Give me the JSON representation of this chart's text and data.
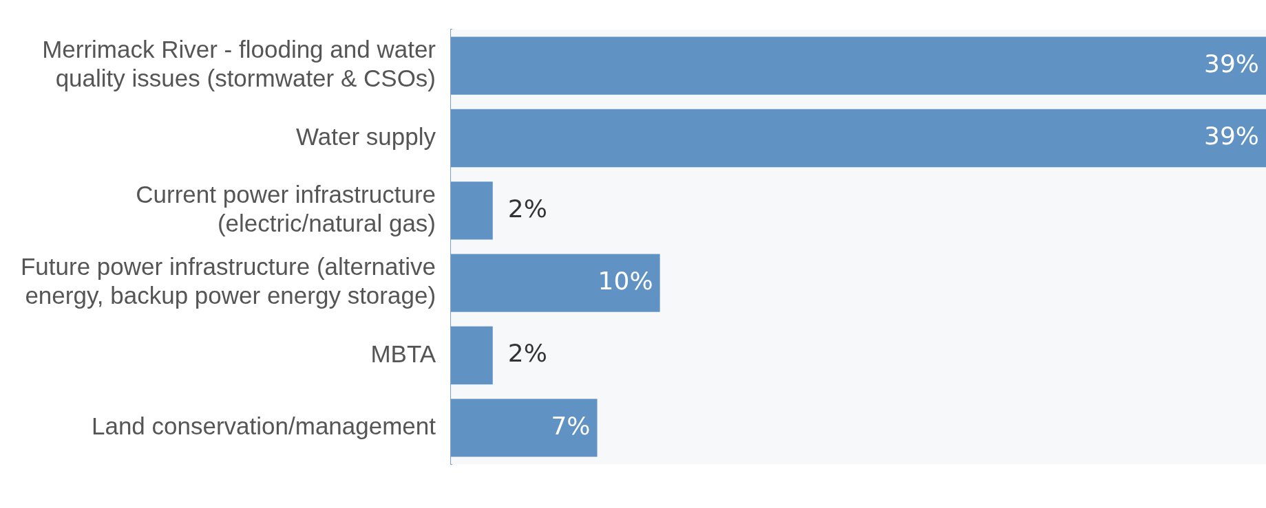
{
  "chart_data": {
    "type": "bar",
    "orientation": "horizontal",
    "tick_labels": "y",
    "categories": [
      "Merrimack River - flooding and water quality issues (stormwater & CSOs)",
      "Water supply",
      "Current power infrastructure (electric/natural gas)",
      "Future power infrastructure (alternative energy, backup power energy storage)",
      "MBTA",
      "Land conservation/management"
    ],
    "values": [
      39,
      39,
      2,
      10,
      2,
      7
    ],
    "value_labels": [
      "39%",
      "39%",
      "2%",
      "10%",
      "2%",
      "7%"
    ],
    "color": "#6092c4",
    "legend": false
  }
}
